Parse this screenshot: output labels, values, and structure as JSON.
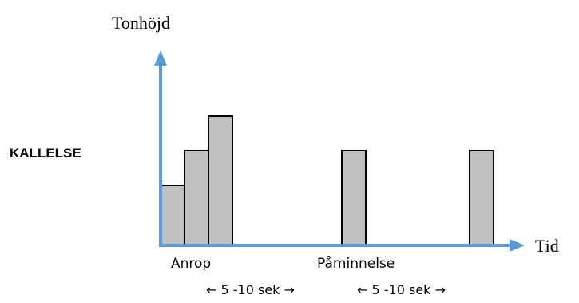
{
  "diagram": {
    "y_axis_label": "Tonhöjd",
    "x_axis_label": "Tid",
    "signal_label": "KALLELSE",
    "axis_color": "#5b9bd5",
    "bar_fill": "#c0c0c0",
    "bar_stroke": "#000000",
    "phase_labels": {
      "call": "Anrop",
      "reminder": "Påminnelse"
    },
    "intervals": [
      {
        "label": "← 5 -10 sek →"
      },
      {
        "label": "← 5 -10 sek →"
      }
    ],
    "pulses": [
      {
        "name": "call-pulse-1",
        "group": "Anrop",
        "pitch_level": 2
      },
      {
        "name": "call-pulse-2",
        "group": "Anrop",
        "pitch_level": 3
      },
      {
        "name": "call-pulse-3",
        "group": "Anrop",
        "pitch_level": 4
      },
      {
        "name": "reminder-pulse-1",
        "group": "Påminnelse",
        "pitch_level": 3
      },
      {
        "name": "reminder-pulse-2",
        "group": "Påminnelse",
        "pitch_level": 3
      }
    ]
  }
}
